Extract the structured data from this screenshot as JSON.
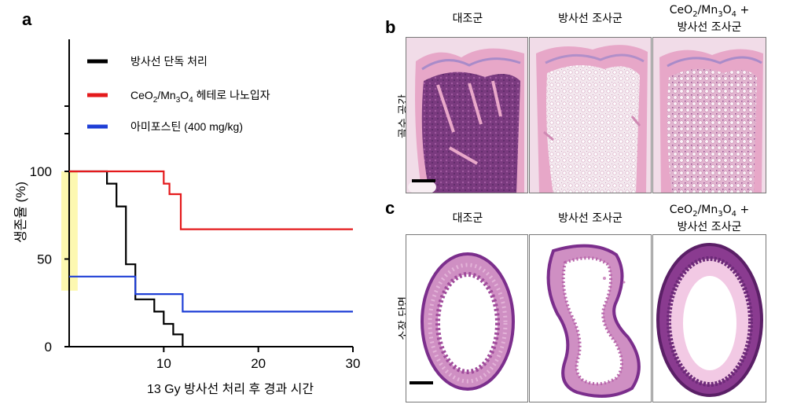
{
  "panels": {
    "a": {
      "letter": "a",
      "chart_data": {
        "type": "line",
        "step": true,
        "ylabel": "생존율 (%)",
        "xlabel": "13 Gy 방사선 처리 후 경과 시간",
        "xlim": [
          0,
          30
        ],
        "ylim": [
          0,
          100
        ],
        "xticks": [
          10,
          20,
          30
        ],
        "yticks": [
          0,
          50,
          100
        ],
        "legend_position": "top",
        "series": [
          {
            "name": "방사선 단독 처리",
            "color": "#000000",
            "points": [
              [
                0,
                100
              ],
              [
                4,
                100
              ],
              [
                4,
                93
              ],
              [
                5,
                93
              ],
              [
                5,
                80
              ],
              [
                6,
                80
              ],
              [
                6,
                47
              ],
              [
                7,
                47
              ],
              [
                7,
                27
              ],
              [
                9,
                27
              ],
              [
                9,
                20
              ],
              [
                10,
                20
              ],
              [
                10,
                13
              ],
              [
                11,
                13
              ],
              [
                11,
                7
              ],
              [
                12,
                7
              ],
              [
                12,
                0
              ]
            ]
          },
          {
            "name_parts": [
              "CeO",
              "2",
              "/Mn",
              "3",
              "O",
              "4",
              " 헤테로 나노입자"
            ],
            "color": "#e41a1c",
            "points": [
              [
                0,
                100
              ],
              [
                10,
                100
              ],
              [
                10,
                93
              ],
              [
                10.6,
                93
              ],
              [
                10.6,
                87
              ],
              [
                11.8,
                87
              ],
              [
                11.8,
                67
              ],
              [
                30,
                67
              ]
            ]
          },
          {
            "name": "아미포스틴 (400 mg/kg)",
            "color": "#1f3fd6",
            "points": [
              [
                0,
                40
              ],
              [
                7,
                40
              ],
              [
                7,
                30
              ],
              [
                12,
                30
              ],
              [
                12,
                20
              ],
              [
                30,
                20
              ]
            ]
          }
        ],
        "highlight": {
          "x": [
            0,
            0.9
          ],
          "y": [
            40,
            100
          ],
          "color": "#fdf8b0"
        }
      }
    },
    "b": {
      "letter": "b",
      "row_label": "골수 공간",
      "col1": "대조군",
      "col2": "방사선 조사군",
      "col3_parts": [
        "CeO",
        "2",
        "/Mn",
        "3",
        "O",
        "4",
        " +"
      ],
      "col3_line2": "방사선 조사군"
    },
    "c": {
      "letter": "c",
      "row_label": "소장 단면",
      "col1": "대조군",
      "col2": "방사선 조사군",
      "col3_parts": [
        "CeO",
        "2",
        "/Mn",
        "3",
        "O",
        "4",
        " +"
      ],
      "col3_line2": "방사선 조사군"
    }
  },
  "colors": {
    "he_pink": "#e59bc0",
    "he_purple": "#7b2e8c",
    "marrow_white": "#f6eaf0"
  }
}
